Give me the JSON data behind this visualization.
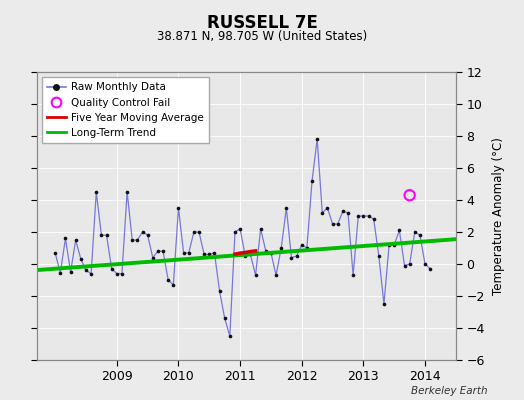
{
  "title": "RUSSELL 7E",
  "subtitle": "38.871 N, 98.705 W (United States)",
  "credit": "Berkeley Earth",
  "ylabel": "Temperature Anomaly (°C)",
  "ylim": [
    -6,
    12
  ],
  "yticks": [
    -6,
    -4,
    -2,
    0,
    2,
    4,
    6,
    8,
    10,
    12
  ],
  "xlim": [
    2007.7,
    2014.5
  ],
  "xticks": [
    2009,
    2010,
    2011,
    2012,
    2013,
    2014
  ],
  "bg_color": "#ebebeb",
  "plot_bg_color": "#e8e8e8",
  "raw_color": "#7777dd",
  "raw_marker_color": "#111111",
  "moving_avg_color": "#dd0000",
  "trend_color": "#00bb00",
  "qc_fail_color": "#ff00ff",
  "legend_labels": [
    "Raw Monthly Data",
    "Quality Control Fail",
    "Five Year Moving Average",
    "Long-Term Trend"
  ],
  "monthly_data": [
    [
      2008.0,
      0.7
    ],
    [
      2008.083,
      -0.55
    ],
    [
      2008.167,
      1.6
    ],
    [
      2008.25,
      -0.5
    ],
    [
      2008.333,
      1.5
    ],
    [
      2008.417,
      0.3
    ],
    [
      2008.5,
      -0.4
    ],
    [
      2008.583,
      -0.6
    ],
    [
      2008.667,
      4.5
    ],
    [
      2008.75,
      1.8
    ],
    [
      2008.833,
      1.8
    ],
    [
      2008.917,
      -0.3
    ],
    [
      2009.0,
      -0.6
    ],
    [
      2009.083,
      -0.6
    ],
    [
      2009.167,
      4.5
    ],
    [
      2009.25,
      1.5
    ],
    [
      2009.333,
      1.5
    ],
    [
      2009.417,
      2.0
    ],
    [
      2009.5,
      1.8
    ],
    [
      2009.583,
      0.4
    ],
    [
      2009.667,
      0.8
    ],
    [
      2009.75,
      0.8
    ],
    [
      2009.833,
      -1.0
    ],
    [
      2009.917,
      -1.3
    ],
    [
      2010.0,
      3.5
    ],
    [
      2010.083,
      0.7
    ],
    [
      2010.167,
      0.7
    ],
    [
      2010.25,
      2.0
    ],
    [
      2010.333,
      2.0
    ],
    [
      2010.417,
      0.6
    ],
    [
      2010.5,
      0.6
    ],
    [
      2010.583,
      0.7
    ],
    [
      2010.667,
      -1.7
    ],
    [
      2010.75,
      -3.4
    ],
    [
      2010.833,
      -4.5
    ],
    [
      2010.917,
      2.0
    ],
    [
      2011.0,
      2.2
    ],
    [
      2011.083,
      0.5
    ],
    [
      2011.167,
      0.6
    ],
    [
      2011.25,
      -0.7
    ],
    [
      2011.333,
      2.2
    ],
    [
      2011.417,
      0.8
    ],
    [
      2011.5,
      0.7
    ],
    [
      2011.583,
      -0.7
    ],
    [
      2011.667,
      1.0
    ],
    [
      2011.75,
      3.5
    ],
    [
      2011.833,
      0.4
    ],
    [
      2011.917,
      0.5
    ],
    [
      2012.0,
      1.2
    ],
    [
      2012.083,
      1.0
    ],
    [
      2012.167,
      5.2
    ],
    [
      2012.25,
      7.8
    ],
    [
      2012.333,
      3.2
    ],
    [
      2012.417,
      3.5
    ],
    [
      2012.5,
      2.5
    ],
    [
      2012.583,
      2.5
    ],
    [
      2012.667,
      3.3
    ],
    [
      2012.75,
      3.2
    ],
    [
      2012.833,
      -0.7
    ],
    [
      2012.917,
      3.0
    ],
    [
      2013.0,
      3.0
    ],
    [
      2013.083,
      3.0
    ],
    [
      2013.167,
      2.8
    ],
    [
      2013.25,
      0.5
    ],
    [
      2013.333,
      -2.5
    ],
    [
      2013.417,
      1.2
    ],
    [
      2013.5,
      1.2
    ],
    [
      2013.583,
      2.1
    ],
    [
      2013.667,
      -0.1
    ],
    [
      2013.75,
      0.0
    ],
    [
      2013.833,
      2.0
    ],
    [
      2013.917,
      1.8
    ],
    [
      2014.0,
      0.0
    ],
    [
      2014.083,
      -0.3
    ]
  ],
  "moving_avg_data": [
    [
      2010.917,
      0.62
    ],
    [
      2011.0,
      0.68
    ],
    [
      2011.083,
      0.72
    ],
    [
      2011.167,
      0.78
    ],
    [
      2011.25,
      0.82
    ]
  ],
  "trend_data": [
    [
      2007.7,
      -0.38
    ],
    [
      2014.5,
      1.55
    ]
  ],
  "qc_fail_data": [
    [
      2013.75,
      4.3
    ]
  ]
}
